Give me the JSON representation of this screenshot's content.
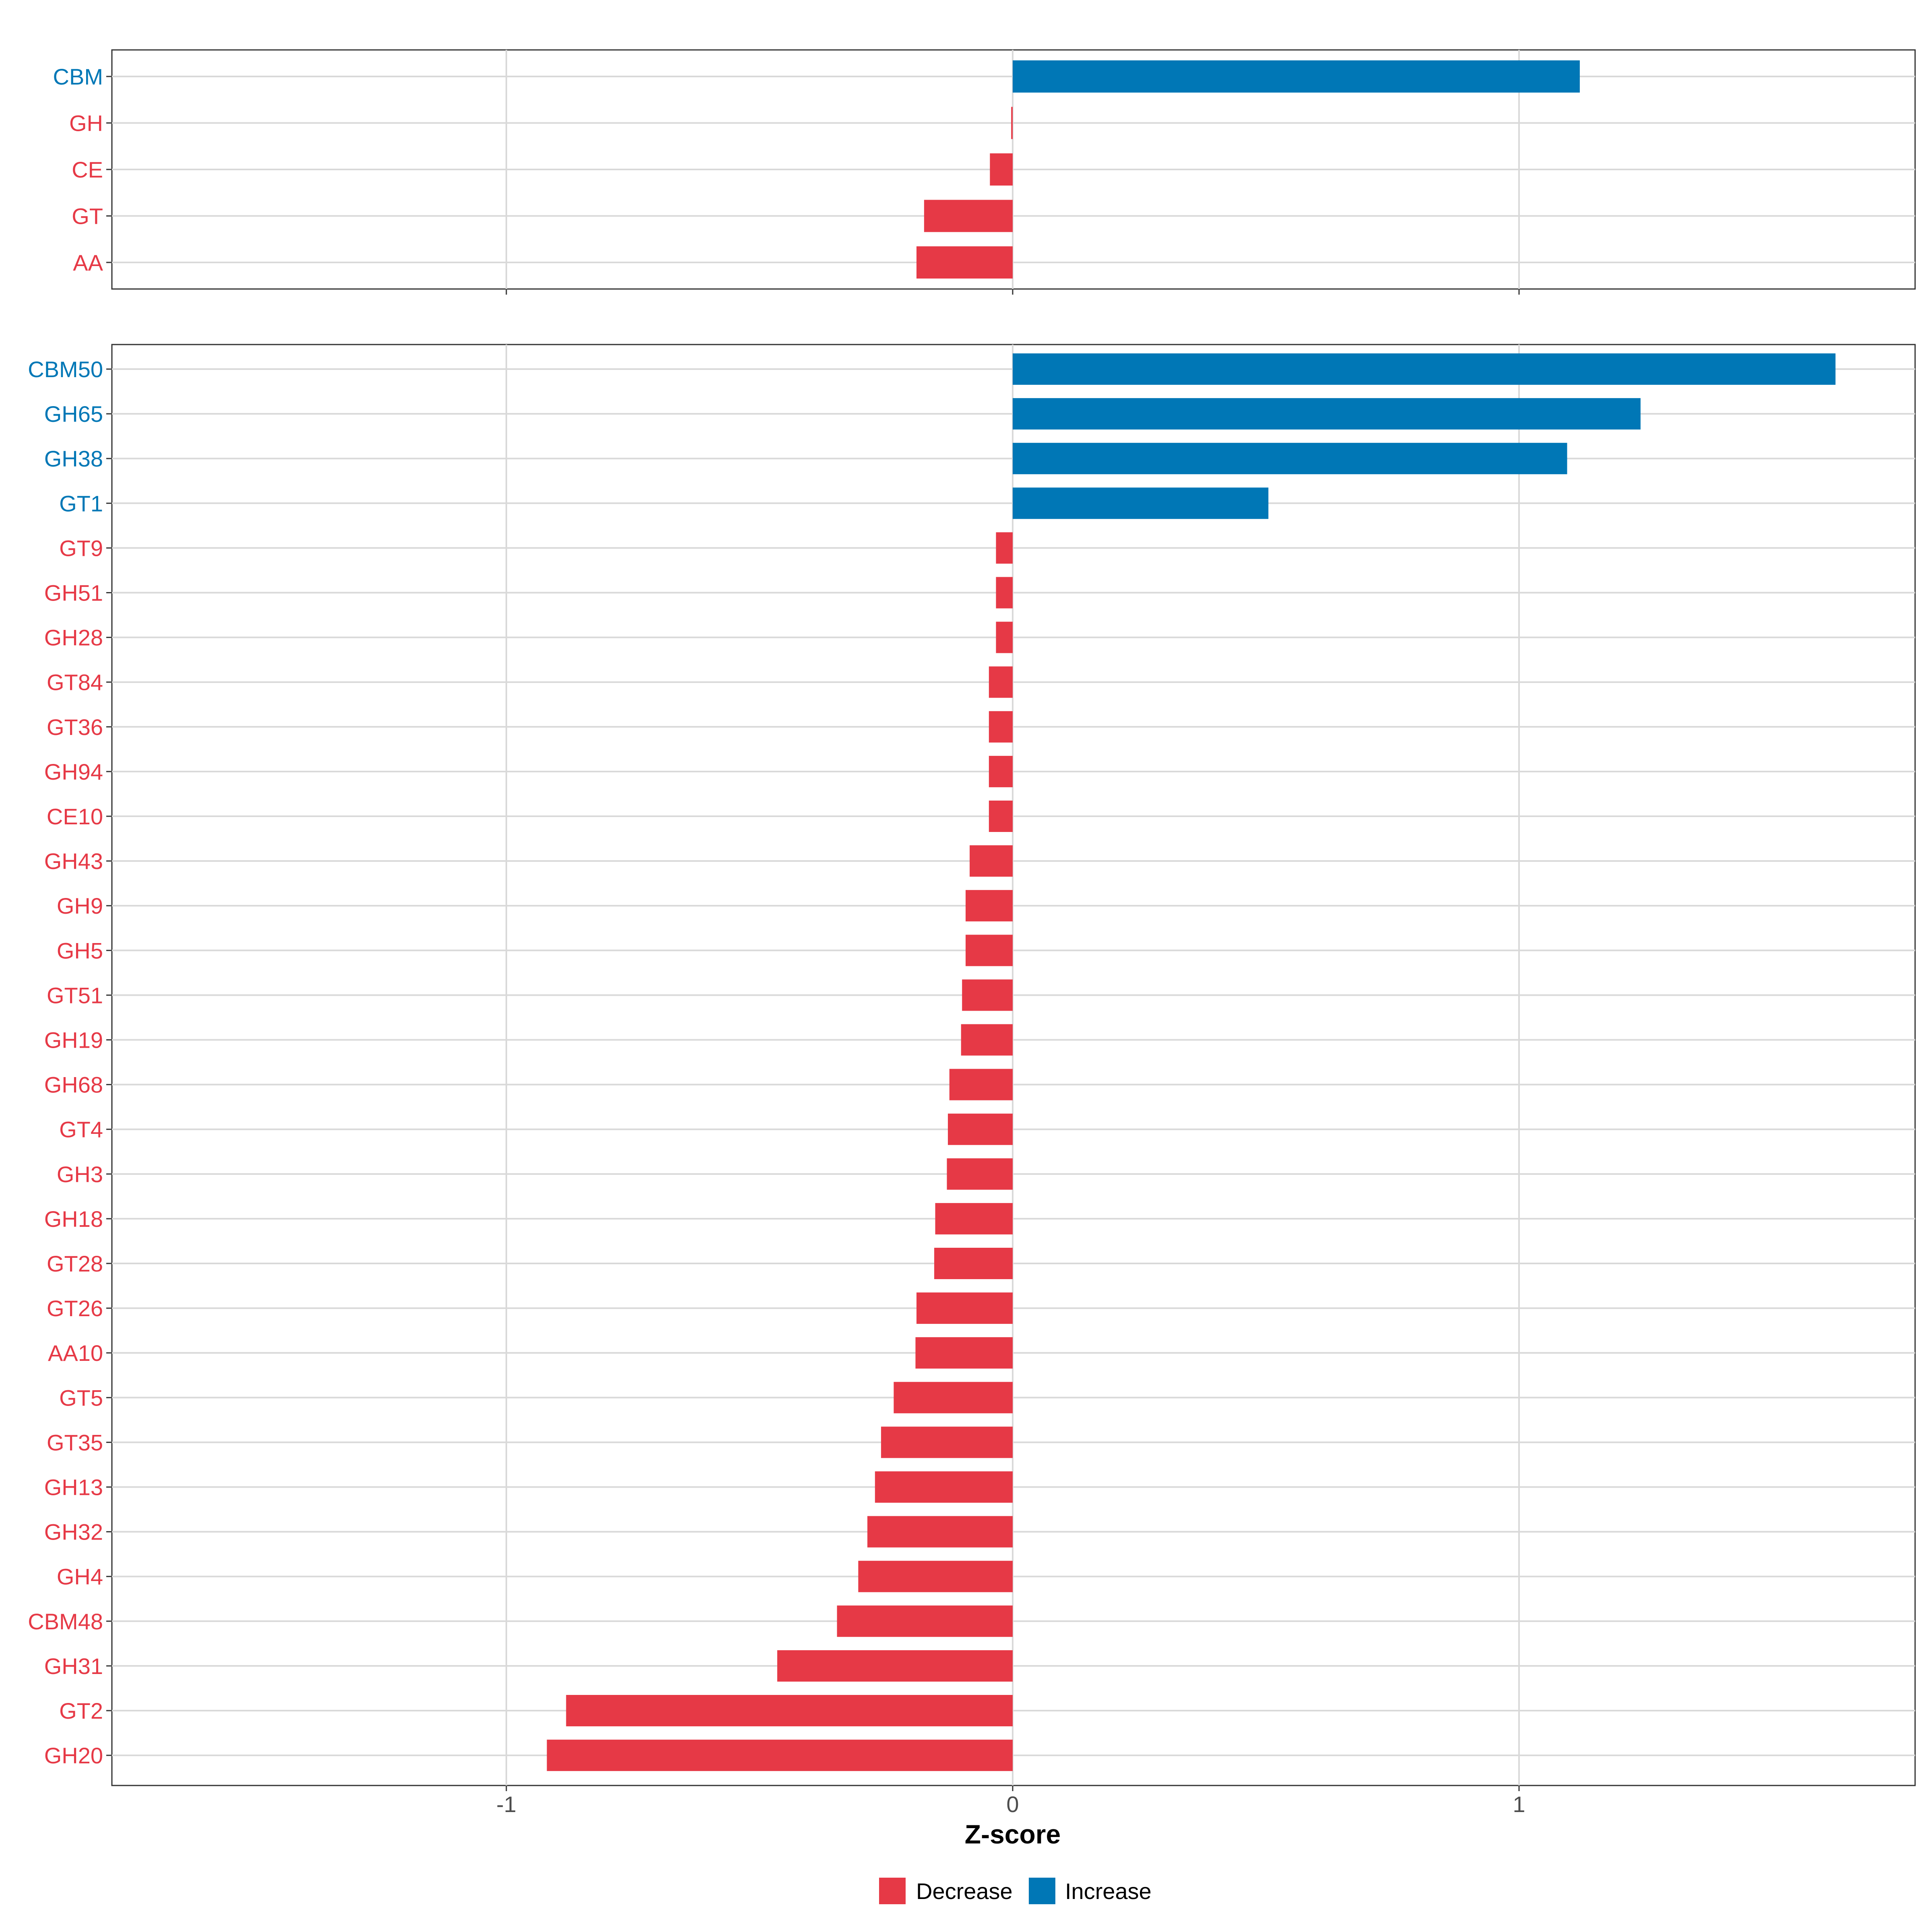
{
  "chart_data": [
    {
      "type": "bar",
      "orientation": "horizontal",
      "panel": "category",
      "categories": [
        "CBM",
        "GH",
        "CE",
        "GT",
        "AA"
      ],
      "values": [
        1.12,
        -0.003,
        -0.045,
        -0.175,
        -0.19
      ],
      "xlim": [
        -1.79,
        1.79
      ],
      "xticks": [
        -1,
        0,
        1
      ],
      "grid": true
    },
    {
      "type": "bar",
      "orientation": "horizontal",
      "panel": "family",
      "categories": [
        "CBM50",
        "GH65",
        "GH38",
        "GT1",
        "GT9",
        "GH51",
        "GH28",
        "GT84",
        "GT36",
        "GH94",
        "CE10",
        "GH43",
        "GH9",
        "GH5",
        "GT51",
        "GH19",
        "GH68",
        "GT4",
        "GH3",
        "GH18",
        "GT28",
        "GT26",
        "AA10",
        "GT5",
        "GT35",
        "GH13",
        "GH32",
        "GH4",
        "CBM48",
        "GH31",
        "GT2",
        "GH20"
      ],
      "values": [
        1.625,
        1.24,
        1.095,
        0.505,
        -0.033,
        -0.033,
        -0.033,
        -0.047,
        -0.047,
        -0.047,
        -0.047,
        -0.085,
        -0.093,
        -0.093,
        -0.1,
        -0.102,
        -0.125,
        -0.128,
        -0.13,
        -0.153,
        -0.155,
        -0.19,
        -0.192,
        -0.235,
        -0.26,
        -0.272,
        -0.287,
        -0.305,
        -0.347,
        -0.465,
        -0.882,
        -0.92
      ],
      "xlim": [
        -1.79,
        1.79
      ],
      "xticks": [
        -1,
        0,
        1
      ],
      "grid": true
    }
  ],
  "axis": {
    "xlabel": "Z-score",
    "tick_labels": [
      "-1",
      "0",
      "1"
    ]
  },
  "legend": {
    "position": "bottom",
    "items": [
      {
        "label": "Decrease",
        "color": "#E63946"
      },
      {
        "label": "Increase",
        "color": "#0077B6"
      }
    ]
  },
  "colors": {
    "decrease": "#E63946",
    "increase": "#0077B6",
    "grid": "#D9D9D9",
    "axis": "#333333"
  }
}
